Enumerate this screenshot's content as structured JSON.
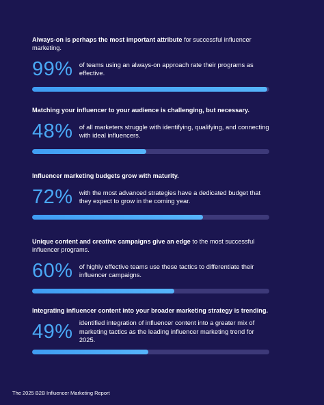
{
  "items": [
    {
      "headline_bold": "Always-on is perhaps the most important attribute",
      "headline_rest": "for successful influencer marketing.",
      "value": 99,
      "value_label": "99%",
      "text": "of teams using an always-on approach rate their programs as effective."
    },
    {
      "headline_bold": "Matching your influencer to your audience is challenging, but necessary.",
      "value": 48,
      "value_label": "48%",
      "text": "of all marketers struggle with identifying, qualifying, and connecting with ideal influencers."
    },
    {
      "headline_bold": "Influencer marketing budgets grow with maturity.",
      "value": 72,
      "value_label": "72%",
      "text": "with the most advanced strategies have a dedicated budget that they expect to grow in the coming year."
    },
    {
      "headline_bold": "Unique content and creative campaigns give an edge",
      "headline_rest": "to the most successful influencer programs.",
      "value": 60,
      "value_label": "60%",
      "text": "of highly effective teams use these tactics to differentiate their influencer campaigns."
    },
    {
      "headline_bold": "Integrating influencer content into your broader marketing strategy is trending.",
      "value": 49,
      "value_label": "49%",
      "text": "identified integration of influencer content into a greater mix of marketing tactics as the leading influencer marketing trend for 2025."
    }
  ],
  "xlim": [
    0,
    100
  ],
  "footer": "The 2025 B2B Influencer Marketing Report"
}
